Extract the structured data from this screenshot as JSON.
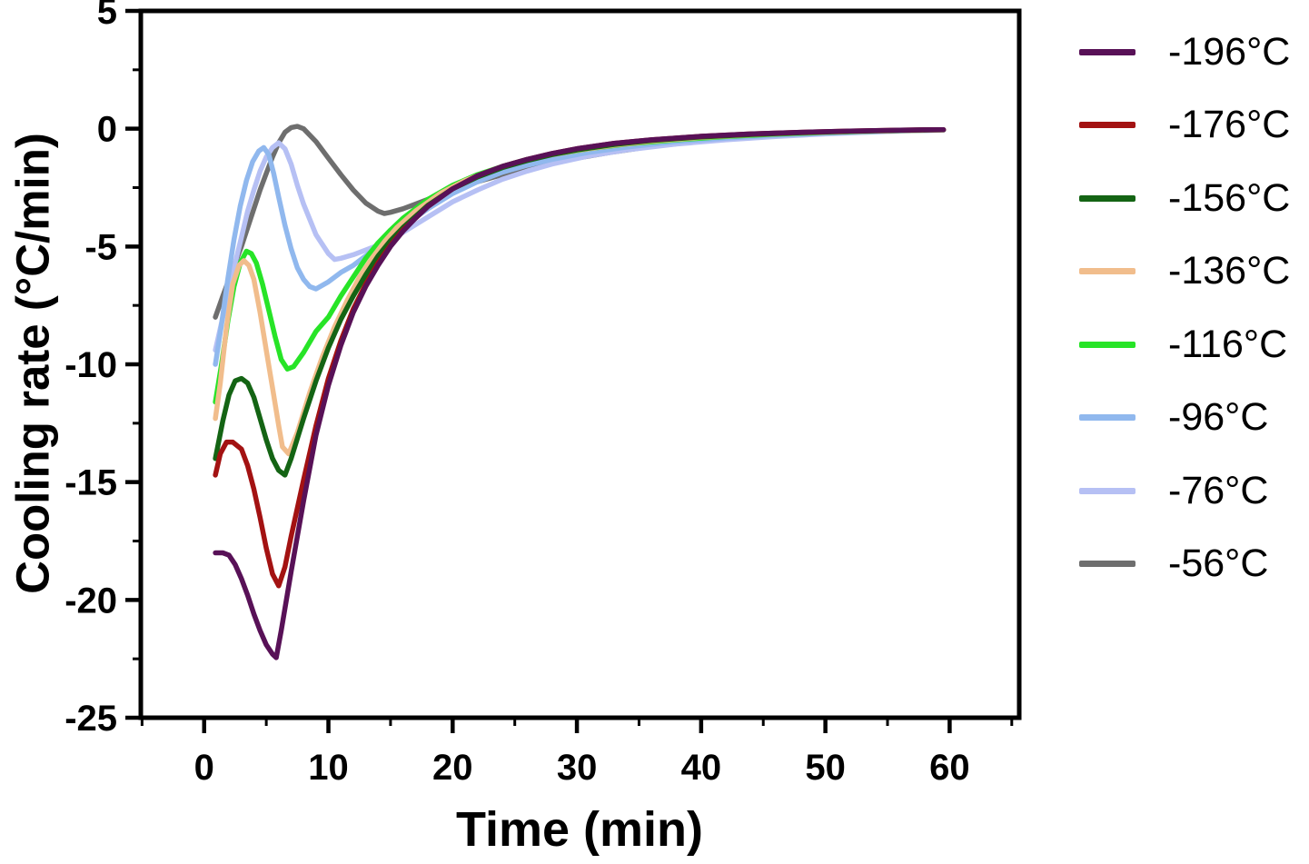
{
  "chart_data": {
    "type": "line",
    "title": "",
    "xlabel": "Time (min)",
    "ylabel": "Cooling rate (°C/min)",
    "xlim": [
      -5.1,
      65.6
    ],
    "ylim": [
      -25,
      5
    ],
    "xticks": [
      0,
      10,
      20,
      30,
      40,
      50,
      60
    ],
    "yticks": [
      -25,
      -20,
      -15,
      -10,
      -5,
      0,
      5
    ],
    "x_minor_step": 5,
    "y_minor_step": 2.5,
    "grid": false,
    "legend_position": "right",
    "axis_color": "#000000",
    "background_color": "#ffffff",
    "series": [
      {
        "name": "-196°C",
        "color": "#581157",
        "x": [
          0.9,
          1.5,
          2,
          2.5,
          3,
          3.5,
          4,
          4.5,
          5,
          5.5,
          5.8,
          6.2,
          7,
          8,
          9,
          10,
          11,
          12,
          13,
          14,
          15,
          16,
          17,
          18,
          20,
          22,
          24,
          26,
          28,
          30,
          33,
          36,
          40,
          44,
          48,
          52,
          56,
          59.5
        ],
        "y": [
          -18.0,
          -18.0,
          -18.1,
          -18.5,
          -19.1,
          -19.8,
          -20.6,
          -21.3,
          -21.9,
          -22.3,
          -22.45,
          -21.3,
          -18.8,
          -15.8,
          -13.0,
          -10.9,
          -9.2,
          -7.8,
          -6.7,
          -5.8,
          -5.0,
          -4.35,
          -3.8,
          -3.3,
          -2.55,
          -2.0,
          -1.6,
          -1.3,
          -1.05,
          -0.85,
          -0.62,
          -0.47,
          -0.32,
          -0.22,
          -0.15,
          -0.1,
          -0.06,
          -0.04
        ]
      },
      {
        "name": "-176°C",
        "color": "#a31212",
        "x": [
          0.9,
          1.3,
          1.8,
          2.3,
          3,
          3.5,
          4,
          4.5,
          5,
          5.5,
          6,
          6.5,
          7,
          8,
          9,
          10,
          11,
          12,
          13,
          14,
          15,
          16,
          18,
          20,
          22,
          24,
          26,
          28,
          30,
          33,
          36,
          40,
          44,
          48,
          52,
          56,
          59.5
        ],
        "y": [
          -14.7,
          -13.8,
          -13.3,
          -13.3,
          -13.6,
          -14.3,
          -15.3,
          -16.5,
          -17.8,
          -18.9,
          -19.4,
          -18.6,
          -17.3,
          -14.9,
          -12.6,
          -10.6,
          -9.0,
          -7.65,
          -6.6,
          -5.7,
          -4.95,
          -4.3,
          -3.3,
          -2.55,
          -2.0,
          -1.6,
          -1.3,
          -1.05,
          -0.85,
          -0.62,
          -0.47,
          -0.32,
          -0.22,
          -0.15,
          -0.1,
          -0.06,
          -0.04
        ]
      },
      {
        "name": "-156°C",
        "color": "#146414",
        "x": [
          0.9,
          1.5,
          2,
          2.5,
          3,
          3.5,
          4,
          4.5,
          5,
          5.5,
          6,
          6.5,
          7,
          8,
          9,
          10,
          11,
          12,
          13,
          14,
          15,
          16,
          18,
          20,
          22,
          24,
          26,
          28,
          30,
          33,
          36,
          40,
          44,
          48,
          52,
          56,
          59.5
        ],
        "y": [
          -14.0,
          -12.4,
          -11.3,
          -10.7,
          -10.6,
          -10.8,
          -11.4,
          -12.3,
          -13.2,
          -14.0,
          -14.5,
          -14.7,
          -14.0,
          -12.3,
          -10.7,
          -9.3,
          -8.1,
          -7.1,
          -6.2,
          -5.4,
          -4.75,
          -4.2,
          -3.25,
          -2.55,
          -2.05,
          -1.65,
          -1.35,
          -1.1,
          -0.9,
          -0.67,
          -0.5,
          -0.35,
          -0.25,
          -0.17,
          -0.11,
          -0.07,
          -0.04
        ]
      },
      {
        "name": "-136°C",
        "color": "#f1bd8c",
        "x": [
          0.9,
          1.3,
          1.8,
          2.3,
          2.8,
          3.2,
          3.6,
          4,
          4.5,
          5,
          5.5,
          6,
          6.3,
          6.8,
          7.5,
          8.5,
          9.5,
          10.5,
          11.5,
          12.5,
          13.5,
          14.5,
          15.5,
          17,
          19,
          21,
          23,
          25,
          27,
          30,
          33,
          36,
          40,
          44,
          48,
          52,
          56,
          59.5
        ],
        "y": [
          -12.3,
          -10.8,
          -8.4,
          -6.6,
          -5.8,
          -5.6,
          -5.8,
          -6.4,
          -7.8,
          -9.4,
          -11.0,
          -12.6,
          -13.5,
          -13.8,
          -12.9,
          -11.2,
          -9.7,
          -8.4,
          -7.3,
          -6.3,
          -5.5,
          -4.8,
          -4.2,
          -3.5,
          -2.75,
          -2.2,
          -1.8,
          -1.45,
          -1.2,
          -0.92,
          -0.7,
          -0.53,
          -0.37,
          -0.26,
          -0.18,
          -0.12,
          -0.08,
          -0.05
        ]
      },
      {
        "name": "-116°C",
        "color": "#27e427",
        "x": [
          0.9,
          1.4,
          1.9,
          2.4,
          2.9,
          3.4,
          3.8,
          4.2,
          4.7,
          5.2,
          5.7,
          6.2,
          6.7,
          7.2,
          8,
          9,
          10,
          11,
          12,
          13,
          14,
          15,
          16,
          18,
          20,
          22,
          24,
          26,
          28,
          31,
          34,
          38,
          42,
          46,
          50,
          55,
          59.5
        ],
        "y": [
          -11.6,
          -10.0,
          -8.2,
          -6.7,
          -5.7,
          -5.2,
          -5.3,
          -5.7,
          -6.6,
          -7.7,
          -8.8,
          -9.8,
          -10.2,
          -10.1,
          -9.5,
          -8.6,
          -8.0,
          -7.1,
          -6.3,
          -5.5,
          -4.85,
          -4.3,
          -3.8,
          -3.0,
          -2.4,
          -1.95,
          -1.6,
          -1.3,
          -1.1,
          -0.85,
          -0.65,
          -0.47,
          -0.33,
          -0.23,
          -0.16,
          -0.09,
          -0.05
        ]
      },
      {
        "name": "-96°C",
        "color": "#90b8ee",
        "x": [
          0.9,
          1.4,
          1.9,
          2.4,
          2.9,
          3.4,
          3.9,
          4.4,
          4.8,
          5.2,
          5.6,
          6,
          6.5,
          7,
          7.5,
          8,
          8.5,
          9,
          10,
          11,
          12,
          13,
          14,
          15,
          16,
          18,
          20,
          22,
          24,
          26,
          28,
          31,
          34,
          38,
          42,
          46,
          50,
          55,
          59.5
        ],
        "y": [
          -10.0,
          -8.3,
          -6.4,
          -4.7,
          -3.3,
          -2.2,
          -1.4,
          -0.95,
          -0.8,
          -1.1,
          -1.9,
          -2.9,
          -4.1,
          -5.1,
          -5.9,
          -6.4,
          -6.7,
          -6.8,
          -6.5,
          -6.1,
          -5.8,
          -5.4,
          -5.0,
          -4.6,
          -4.15,
          -3.4,
          -2.75,
          -2.25,
          -1.85,
          -1.55,
          -1.3,
          -1.0,
          -0.78,
          -0.55,
          -0.4,
          -0.28,
          -0.19,
          -0.1,
          -0.05
        ]
      },
      {
        "name": "-76°C",
        "color": "#b6c0f4",
        "x": [
          0.9,
          1.5,
          2,
          2.5,
          3,
          3.5,
          4,
          4.5,
          5,
          5.5,
          6,
          6.5,
          7,
          7.5,
          8,
          9,
          10,
          10.5,
          11,
          12,
          13,
          14,
          15,
          16,
          18,
          20,
          22,
          24,
          26,
          28,
          31,
          34,
          38,
          42,
          46,
          50,
          55,
          59.5
        ],
        "y": [
          -9.4,
          -8.0,
          -6.9,
          -5.7,
          -4.6,
          -3.5,
          -2.6,
          -1.8,
          -1.2,
          -0.8,
          -0.6,
          -0.85,
          -1.5,
          -2.4,
          -3.2,
          -4.5,
          -5.3,
          -5.55,
          -5.5,
          -5.35,
          -5.15,
          -4.95,
          -4.7,
          -4.4,
          -3.75,
          -3.1,
          -2.6,
          -2.15,
          -1.8,
          -1.5,
          -1.15,
          -0.9,
          -0.65,
          -0.47,
          -0.33,
          -0.22,
          -0.12,
          -0.06
        ]
      },
      {
        "name": "-56°C",
        "color": "#6e6e6e",
        "x": [
          0.9,
          1.5,
          2,
          2.5,
          3,
          3.5,
          4,
          4.5,
          5,
          5.5,
          6,
          6.5,
          7,
          7.5,
          8,
          9,
          10,
          11,
          12,
          13,
          14,
          14.5,
          15,
          16,
          17,
          18,
          20,
          22,
          24,
          26,
          28,
          30,
          33,
          36,
          40,
          44,
          48,
          52,
          56,
          59.5
        ],
        "y": [
          -8.0,
          -7.1,
          -6.4,
          -5.7,
          -5.0,
          -4.2,
          -3.4,
          -2.6,
          -1.9,
          -1.2,
          -0.6,
          -0.15,
          0.05,
          0.1,
          0.0,
          -0.55,
          -1.25,
          -1.95,
          -2.6,
          -3.15,
          -3.5,
          -3.6,
          -3.55,
          -3.4,
          -3.2,
          -3.0,
          -2.6,
          -2.25,
          -1.95,
          -1.7,
          -1.45,
          -1.25,
          -0.98,
          -0.75,
          -0.53,
          -0.37,
          -0.25,
          -0.16,
          -0.09,
          -0.05
        ]
      }
    ]
  }
}
